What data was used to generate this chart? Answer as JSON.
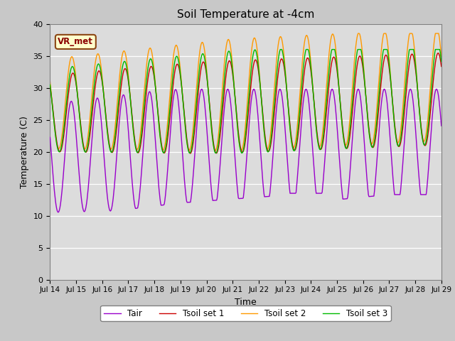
{
  "title": "Soil Temperature at -4cm",
  "xlabel": "Time",
  "ylabel": "Temperature (C)",
  "ylim": [
    0,
    40
  ],
  "annotation": "VR_met",
  "xtick_labels": [
    "Jul 14",
    "Jul 15",
    "Jul 16",
    "Jul 17",
    "Jul 18",
    "Jul 19",
    "Jul 20",
    "Jul 21",
    "Jul 22",
    "Jul 23",
    "Jul 24",
    "Jul 25",
    "Jul 26",
    "Jul 27",
    "Jul 28",
    "Jul 29"
  ],
  "legend_labels": [
    "Tair",
    "Tsoil set 1",
    "Tsoil set 2",
    "Tsoil set 3"
  ],
  "colors": [
    "#9900cc",
    "#cc0000",
    "#ff9900",
    "#00bb00"
  ],
  "fig_bg": "#c8c8c8",
  "plot_bg": "#dcdcdc",
  "n_points": 720,
  "n_days": 15
}
